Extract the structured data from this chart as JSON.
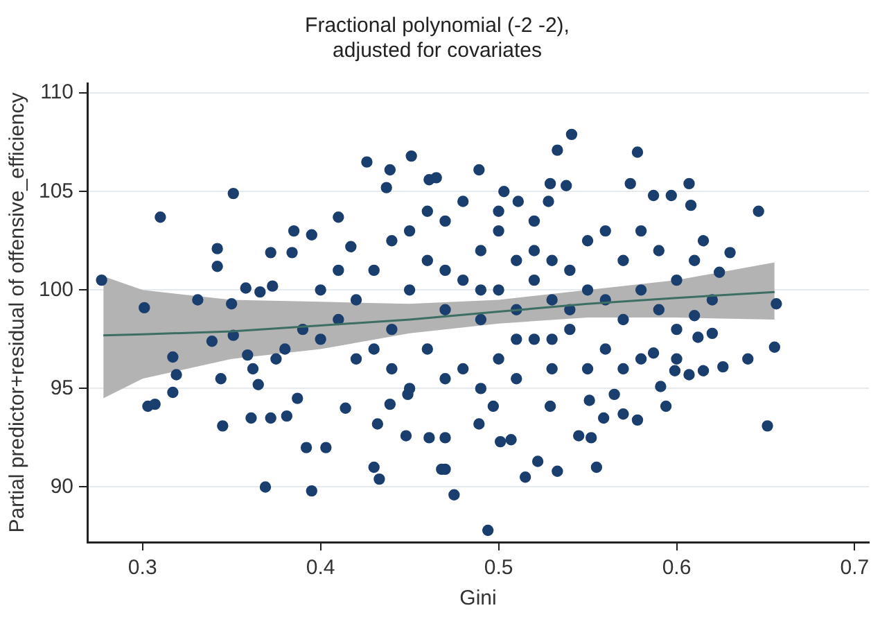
{
  "chart_data": {
    "type": "scatter",
    "title": "Fractional polynomial (-2 -2),\nadjusted for covariates",
    "xlabel": "Gini",
    "ylabel": "Partial predictor+residual of offensive_efficiency",
    "xlim": [
      0.269,
      0.708
    ],
    "ylim": [
      87.2,
      110.5
    ],
    "xticks": [
      0.3,
      0.4,
      0.5,
      0.6,
      0.7
    ],
    "yticks": [
      90,
      95,
      100,
      105,
      110
    ],
    "grid": "y",
    "legend": false,
    "marker": "circle",
    "series": [
      {
        "type": "line",
        "color": "#3d6e63",
        "marker": "none",
        "x": [
          0.278,
          0.3,
          0.35,
          0.4,
          0.45,
          0.5,
          0.55,
          0.6,
          0.655
        ],
        "values": [
          97.7,
          97.75,
          97.9,
          98.2,
          98.5,
          98.9,
          99.3,
          99.6,
          99.9
        ],
        "lower": [
          94.5,
          95.5,
          96.5,
          97.0,
          97.8,
          98.3,
          98.6,
          98.6,
          98.5
        ],
        "upper": [
          100.7,
          100.0,
          99.5,
          99.4,
          99.3,
          99.5,
          100.0,
          100.5,
          101.4
        ]
      },
      {
        "color": "#1a3e6e",
        "x": [
          0.277,
          0.301,
          0.31,
          0.303,
          0.307,
          0.317,
          0.319,
          0.317,
          0.331,
          0.339,
          0.342,
          0.342,
          0.344,
          0.345,
          0.351,
          0.35,
          0.351,
          0.358,
          0.359,
          0.362,
          0.365,
          0.361,
          0.366,
          0.373,
          0.372,
          0.369,
          0.372,
          0.375,
          0.381,
          0.385,
          0.384,
          0.387,
          0.392,
          0.395,
          0.395,
          0.403,
          0.41,
          0.417,
          0.414,
          0.426,
          0.439,
          0.451,
          0.437,
          0.43,
          0.433,
          0.432,
          0.439,
          0.449,
          0.461,
          0.465,
          0.448,
          0.461,
          0.47,
          0.47,
          0.541,
          0.533,
          0.578,
          0.489,
          0.503,
          0.511,
          0.528,
          0.529,
          0.538,
          0.574,
          0.607,
          0.587,
          0.597,
          0.608,
          0.646,
          0.63,
          0.656,
          0.624,
          0.655,
          0.64,
          0.626,
          0.615,
          0.607,
          0.599,
          0.591,
          0.594,
          0.651,
          0.587,
          0.57,
          0.578,
          0.559,
          0.555,
          0.533,
          0.522,
          0.515,
          0.545,
          0.552,
          0.501,
          0.507,
          0.494,
          0.475,
          0.468,
          0.497,
          0.489,
          0.612,
          0.61,
          0.565,
          0.551,
          0.529,
          0.42,
          0.43,
          0.44,
          0.45,
          0.45,
          0.46,
          0.46,
          0.47,
          0.47,
          0.48,
          0.48,
          0.49,
          0.49,
          0.5,
          0.5,
          0.5,
          0.51,
          0.51,
          0.52,
          0.52,
          0.52,
          0.53,
          0.53,
          0.54,
          0.54,
          0.55,
          0.55,
          0.56,
          0.56,
          0.57,
          0.57,
          0.58,
          0.58,
          0.59,
          0.59,
          0.6,
          0.6,
          0.61,
          0.44,
          0.43,
          0.41,
          0.42,
          0.4,
          0.39,
          0.4,
          0.38,
          0.41,
          0.45,
          0.47,
          0.49,
          0.51,
          0.53,
          0.55,
          0.46,
          0.48,
          0.5,
          0.52,
          0.56,
          0.44,
          0.47,
          0.49,
          0.51,
          0.53,
          0.54,
          0.57,
          0.58,
          0.62,
          0.62,
          0.615,
          0.6
        ],
        "values": [
          100.5,
          99.1,
          103.7,
          94.1,
          94.2,
          96.6,
          95.7,
          94.8,
          99.5,
          97.4,
          102.1,
          101.2,
          95.5,
          93.1,
          104.9,
          99.3,
          97.7,
          100.1,
          96.7,
          96.0,
          95.2,
          93.5,
          99.9,
          100.2,
          101.9,
          90.0,
          93.5,
          96.5,
          93.6,
          103.0,
          101.9,
          94.5,
          92.0,
          89.8,
          102.8,
          92.0,
          103.7,
          102.2,
          94.0,
          106.5,
          106.1,
          106.8,
          105.2,
          91.0,
          90.4,
          93.2,
          94.2,
          94.7,
          105.6,
          105.7,
          92.6,
          92.5,
          92.5,
          90.9,
          107.9,
          107.1,
          107.0,
          106.1,
          105.0,
          104.5,
          104.5,
          105.4,
          105.3,
          105.4,
          105.4,
          104.8,
          104.8,
          104.3,
          104.0,
          101.9,
          99.3,
          100.9,
          97.1,
          96.5,
          96.1,
          95.9,
          95.7,
          95.9,
          95.1,
          94.1,
          93.1,
          96.8,
          93.7,
          93.4,
          93.5,
          91.0,
          90.8,
          91.3,
          90.5,
          92.6,
          92.5,
          92.3,
          92.4,
          87.8,
          89.6,
          90.9,
          94.1,
          93.2,
          97.6,
          98.7,
          94.7,
          94.4,
          94.1,
          99.5,
          101,
          98,
          100,
          103,
          97,
          101.5,
          99,
          103.5,
          96,
          100.5,
          98.5,
          102,
          100,
          96.5,
          103,
          99,
          101.5,
          97.5,
          100.5,
          103.5,
          99.5,
          96,
          101,
          98,
          100,
          102.5,
          97,
          99.5,
          101.5,
          98.5,
          100,
          96.5,
          99,
          102,
          100.5,
          98,
          101.5,
          96,
          97,
          98.5,
          96.5,
          97.5,
          98,
          100,
          97,
          101,
          95,
          95.5,
          95,
          95.5,
          97.5,
          96,
          104,
          104.5,
          104,
          102,
          103,
          102.5,
          101,
          100,
          97.5,
          101.5,
          99,
          96,
          103,
          99.5,
          97.8,
          102.5,
          96.5
        ]
      }
    ]
  }
}
